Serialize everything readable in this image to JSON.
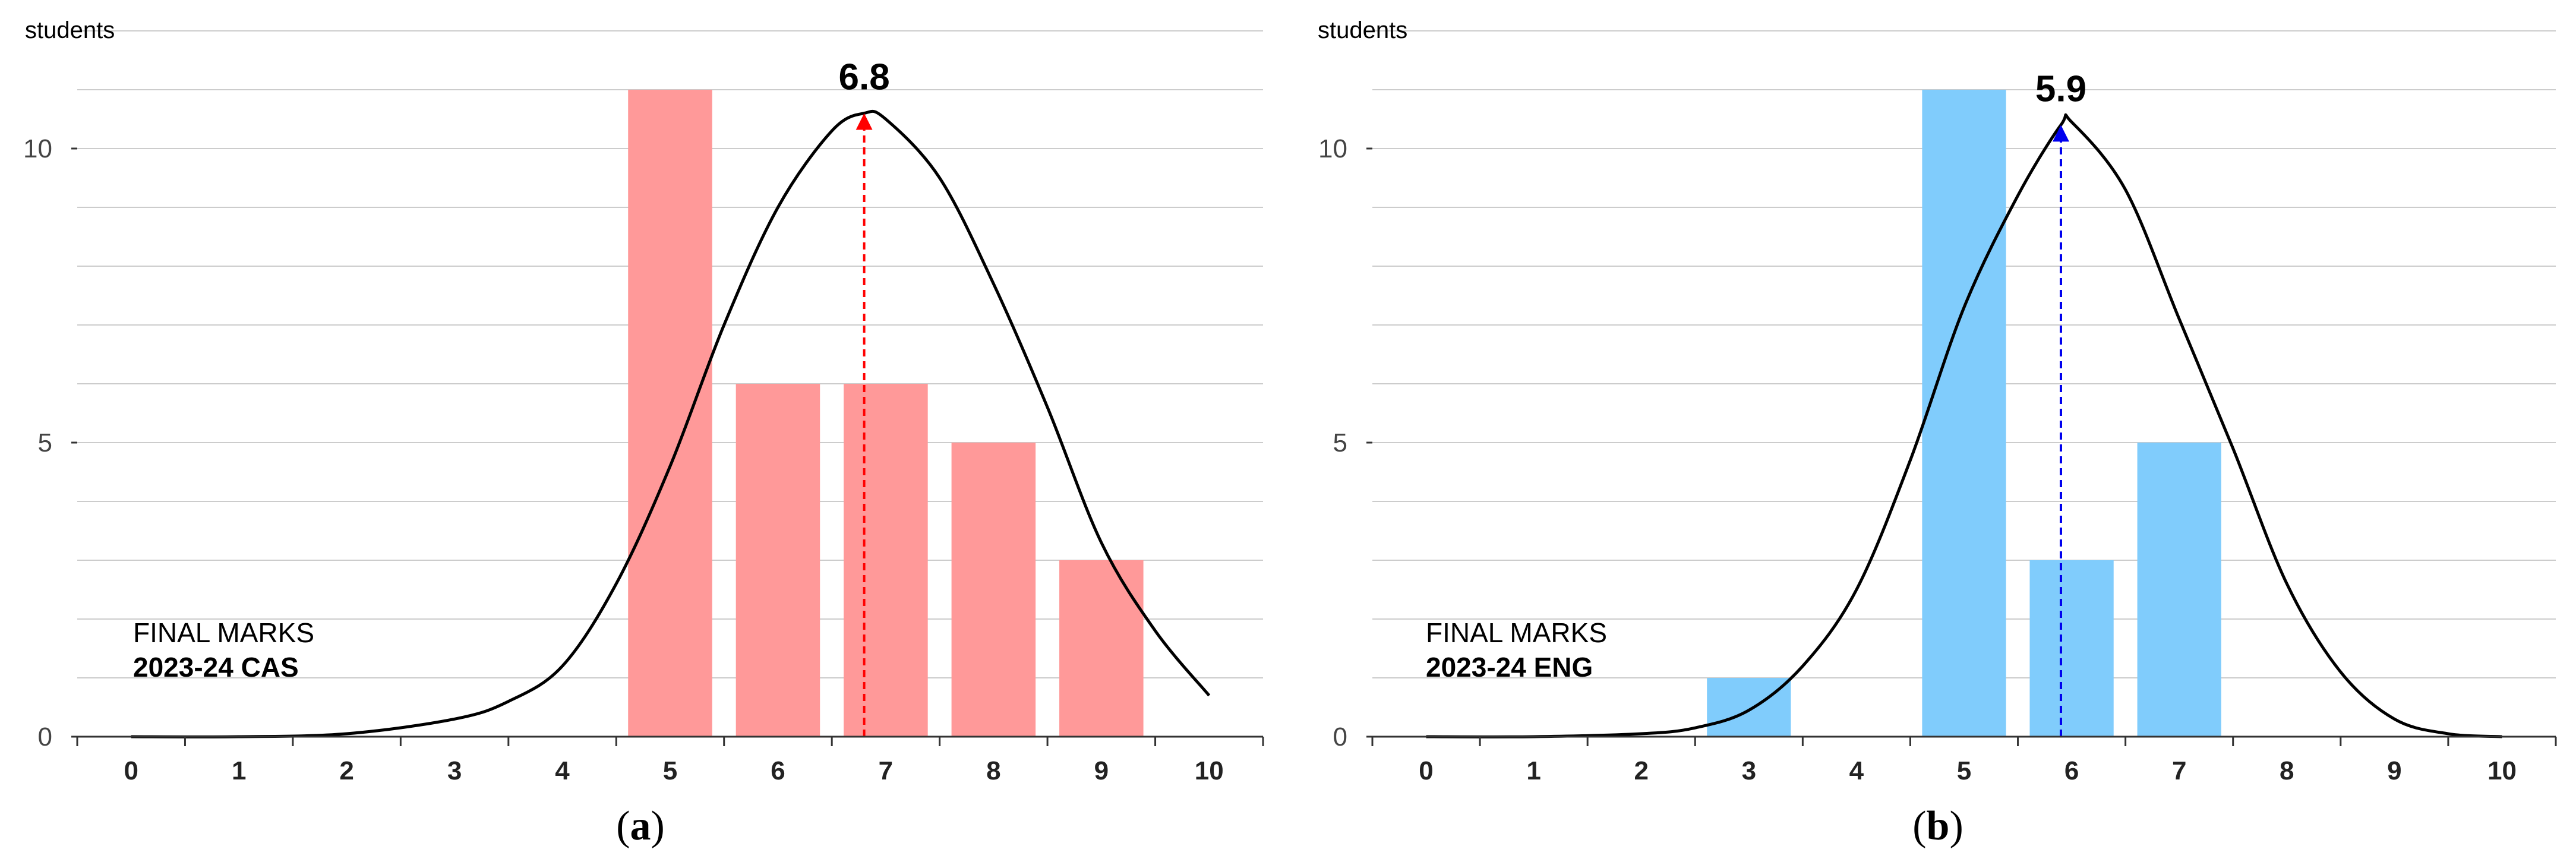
{
  "chart_data": [
    {
      "type": "bar",
      "panel_label": "a",
      "ylabel": "students",
      "xlabel": "",
      "categories": [
        0,
        1,
        2,
        3,
        4,
        5,
        6,
        7,
        8,
        9,
        10
      ],
      "x_ticks": [
        "0",
        "1",
        "2",
        "3",
        "4",
        "5",
        "6",
        "7",
        "8",
        "9",
        "10"
      ],
      "y_ticks": [
        "0",
        "5",
        "10"
      ],
      "values": [
        0,
        0,
        0,
        0,
        0,
        11,
        6,
        6,
        5,
        3,
        0
      ],
      "ylim": [
        0,
        12
      ],
      "xlim": [
        -0.5,
        10.5
      ],
      "bar_color": "#ff9999",
      "curve_color": "#000000",
      "curve": [
        [
          0,
          0.0
        ],
        [
          1,
          0.0
        ],
        [
          2,
          0.05
        ],
        [
          3,
          0.3
        ],
        [
          3.5,
          0.6
        ],
        [
          4,
          1.2
        ],
        [
          4.5,
          2.6
        ],
        [
          5,
          4.6
        ],
        [
          5.5,
          7.0
        ],
        [
          6,
          9.0
        ],
        [
          6.5,
          10.3
        ],
        [
          6.8,
          10.6
        ],
        [
          7,
          10.5
        ],
        [
          7.5,
          9.5
        ],
        [
          8,
          7.7
        ],
        [
          8.5,
          5.6
        ],
        [
          9,
          3.3
        ],
        [
          9.5,
          1.8
        ],
        [
          10,
          0.7
        ]
      ],
      "mean": 6.8,
      "mean_label": "6.8",
      "mean_color": "#ff0000",
      "annotation": {
        "line1": "FINAL MARKS",
        "line2": "2023-24 CAS"
      }
    },
    {
      "type": "bar",
      "panel_label": "b",
      "ylabel": "students",
      "xlabel": "",
      "categories": [
        0,
        1,
        2,
        3,
        4,
        5,
        6,
        7,
        8,
        9,
        10
      ],
      "x_ticks": [
        "0",
        "1",
        "2",
        "3",
        "4",
        "5",
        "6",
        "7",
        "8",
        "9",
        "10"
      ],
      "y_ticks": [
        "0",
        "5",
        "10"
      ],
      "values": [
        0,
        0,
        0,
        1,
        0,
        11,
        3,
        5,
        0,
        0,
        0
      ],
      "ylim": [
        0,
        12
      ],
      "xlim": [
        -0.5,
        10.5
      ],
      "bar_color": "#80ccfc",
      "curve_color": "#000000",
      "curve": [
        [
          0,
          0.0
        ],
        [
          1,
          0.0
        ],
        [
          2,
          0.05
        ],
        [
          2.5,
          0.15
        ],
        [
          3,
          0.45
        ],
        [
          3.5,
          1.2
        ],
        [
          4,
          2.5
        ],
        [
          4.5,
          4.7
        ],
        [
          5,
          7.3
        ],
        [
          5.5,
          9.2
        ],
        [
          5.9,
          10.4
        ],
        [
          6,
          10.45
        ],
        [
          6.5,
          9.3
        ],
        [
          7,
          7.1
        ],
        [
          7.5,
          4.9
        ],
        [
          8,
          2.6
        ],
        [
          8.5,
          1.1
        ],
        [
          9,
          0.3
        ],
        [
          9.5,
          0.05
        ],
        [
          10,
          0.0
        ]
      ],
      "mean": 5.9,
      "mean_label": "5.9",
      "mean_color": "#0000ee",
      "annotation": {
        "line1": "FINAL MARKS",
        "line2": "2023-24 ENG"
      }
    }
  ]
}
